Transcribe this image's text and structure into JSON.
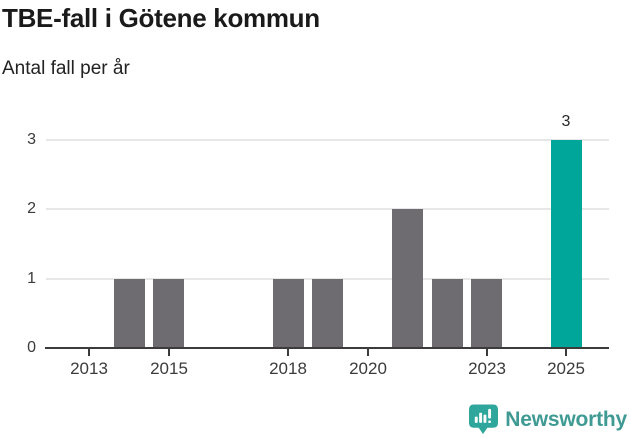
{
  "header": {
    "title": "TBE-fall i Götene kommun",
    "subtitle": "Antal fall per år"
  },
  "chart_data": {
    "type": "bar",
    "title": "TBE-fall i Götene kommun",
    "subtitle": "Antal fall per år",
    "categories": [
      2012,
      2013,
      2014,
      2015,
      2016,
      2017,
      2018,
      2019,
      2020,
      2021,
      2022,
      2023,
      2024,
      2025
    ],
    "values": [
      0,
      0,
      1,
      1,
      0,
      0,
      1,
      1,
      0,
      2,
      1,
      1,
      0,
      3
    ],
    "xlabel": "",
    "ylabel": "Antal fall per år",
    "ylim": [
      0,
      3
    ],
    "yticks": [
      0,
      1,
      2,
      3
    ],
    "xticks": [
      2013,
      2015,
      2018,
      2020,
      2023,
      2025
    ],
    "grid": "horizontal",
    "legend": "none",
    "bar_color": "#6e6c70",
    "highlight_color": "#00a69a",
    "highlight_year": 2025,
    "data_labels": [
      {
        "year": 2025,
        "label": "3"
      }
    ]
  },
  "colors": {
    "title_text": "#1a1a1a",
    "axis_text": "#3b3b3b",
    "axis_line": "#3b3b3b",
    "gridline": "#e7e7e7"
  },
  "footer": {
    "brand": "Newsworthy",
    "brand_text_color": "#3f9a94",
    "logo_icon": "bar-chart-speech-bubble-icon",
    "logo_icon_color": "#2fa69c"
  }
}
